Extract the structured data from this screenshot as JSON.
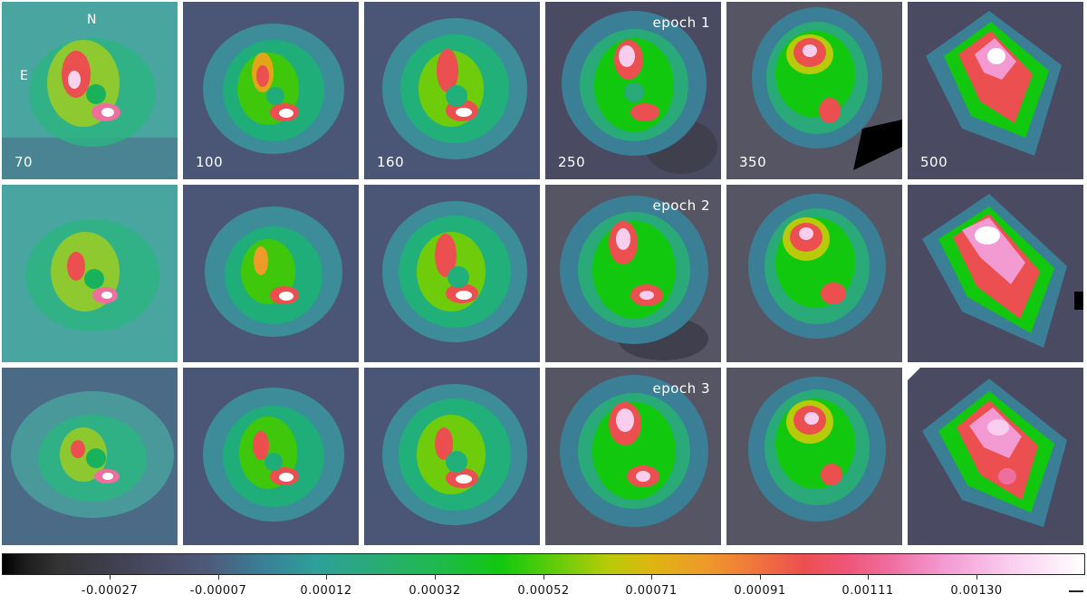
{
  "orientation": {
    "north": "N",
    "east": "E"
  },
  "rows": [
    {
      "epoch_label": "epoch 1",
      "wavelengths": [
        "70",
        "100",
        "160",
        "250",
        "350",
        "500"
      ]
    },
    {
      "epoch_label": "epoch 2",
      "wavelengths": [
        "",
        "",
        "",
        "",
        "",
        ""
      ]
    },
    {
      "epoch_label": "epoch 3",
      "wavelengths": [
        "",
        "",
        "",
        "",
        "",
        ""
      ]
    }
  ],
  "colorbar": {
    "ticks": [
      "-0.00027",
      "-0.00007",
      "0.00012",
      "0.00032",
      "0.00052",
      "0.00071",
      "0.00091",
      "0.00111",
      "0.00130"
    ],
    "colors": {
      "low": "#000000",
      "mid_low": "#4a4a62",
      "mid": "#11c80f",
      "mid_high": "#ec4f4f",
      "high": "#ffffff"
    }
  }
}
